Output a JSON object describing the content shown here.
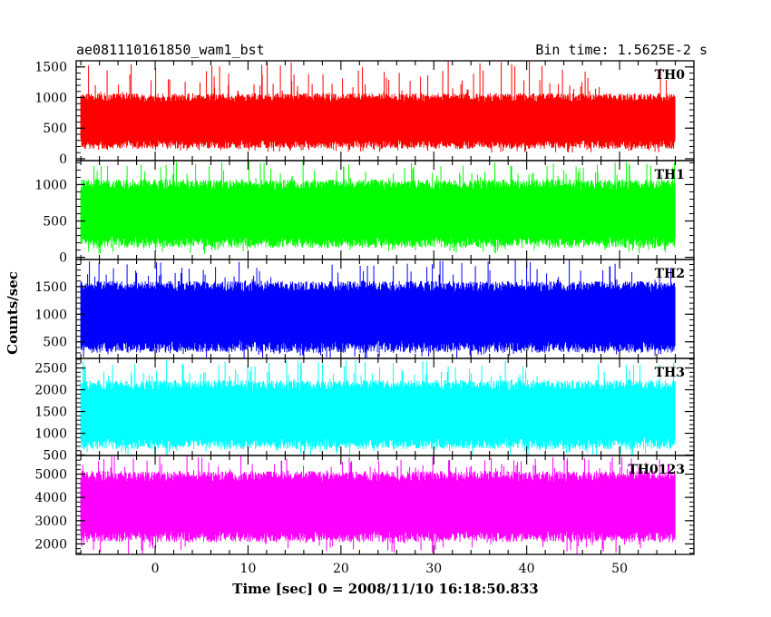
{
  "header": {
    "title": "ae081110161850_wam1_bst",
    "bin_time": "Bin time: 1.5625E-2 s"
  },
  "chart_data": {
    "type": "line",
    "xlabel": "Time [sec] 0 = 2008/11/10 16:18:50.833",
    "ylabel": "Counts/sec",
    "xlim": [
      -8.5,
      58
    ],
    "x_ticks": [
      0,
      10,
      20,
      30,
      40,
      50
    ],
    "x_tick_labels": [
      "0",
      "10",
      "20",
      "30",
      "40",
      "50"
    ],
    "x_range_data": [
      -8,
      56
    ],
    "panels": [
      {
        "name": "TH0",
        "color": "#ff0000",
        "ylim": [
          -30,
          1600
        ],
        "y_ticks": [
          0,
          500,
          1000,
          1500
        ],
        "typical_low": 230,
        "typical_high": 1000,
        "min_value": 100,
        "max_value": 1600
      },
      {
        "name": "TH1",
        "color": "#00ff00",
        "ylim": [
          -30,
          1330
        ],
        "y_ticks": [
          0,
          500,
          1000
        ],
        "typical_low": 200,
        "typical_high": 1000,
        "min_value": 50,
        "max_value": 1330
      },
      {
        "name": "TH2",
        "color": "#0000ff",
        "ylim": [
          200,
          1990
        ],
        "y_ticks": [
          500,
          1000,
          1500
        ],
        "typical_low": 400,
        "typical_high": 1500,
        "min_value": 200,
        "max_value": 1990
      },
      {
        "name": "TH3",
        "color": "#00ffff",
        "ylim": [
          490,
          2720
        ],
        "y_ticks": [
          500,
          1000,
          1500,
          2000,
          2500
        ],
        "typical_low": 750,
        "typical_high": 2100,
        "min_value": 490,
        "max_value": 2720
      },
      {
        "name": "TH0123",
        "color": "#ff00ff",
        "ylim": [
          1550,
          5800
        ],
        "y_ticks": [
          2000,
          3000,
          4000,
          5000
        ],
        "typical_low": 2300,
        "typical_high": 4900,
        "min_value": 1550,
        "max_value": 5800
      }
    ]
  }
}
